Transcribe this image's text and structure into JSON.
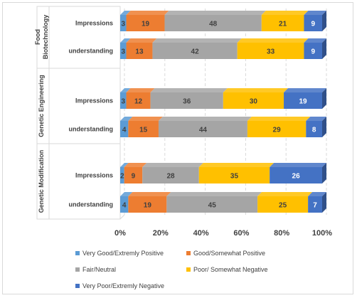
{
  "chart_data": {
    "type": "bar",
    "orientation": "horizontal",
    "stacked": "percent",
    "groups": [
      "Food Biotechnology",
      "Genetic Engineering",
      "Genetic Modification"
    ],
    "categories": [
      "Impressions",
      "understanding"
    ],
    "series": [
      {
        "name": "Very Good/Extremly Positive",
        "color": "#5b9bd5",
        "values": [
          [
            3,
            3
          ],
          [
            3,
            4
          ],
          [
            2,
            4
          ]
        ]
      },
      {
        "name": "Good/Somewhat Positive",
        "color": "#ed7d31",
        "values": [
          [
            19,
            13
          ],
          [
            12,
            15
          ],
          [
            9,
            19
          ]
        ]
      },
      {
        "name": "Fair/Neutral",
        "color": "#a5a5a5",
        "values": [
          [
            48,
            42
          ],
          [
            36,
            44
          ],
          [
            28,
            45
          ]
        ]
      },
      {
        "name": "Poor/ Somewhat Negative",
        "color": "#ffc000",
        "values": [
          [
            21,
            33
          ],
          [
            30,
            29
          ],
          [
            35,
            25
          ]
        ]
      },
      {
        "name": "Very Poor/Extremly Negative",
        "color": "#4472c4",
        "values": [
          [
            9,
            9
          ],
          [
            19,
            8
          ],
          [
            26,
            7
          ]
        ]
      }
    ],
    "x_ticks": [
      "0%",
      "20%",
      "40%",
      "60%",
      "80%",
      "100%"
    ],
    "xlim": [
      0,
      100
    ],
    "grid": "vertical dashed",
    "legend_position": "bottom",
    "value_label_colors": [
      "#404040",
      "#404040",
      "#404040",
      "#404040",
      "#ffffff"
    ]
  }
}
